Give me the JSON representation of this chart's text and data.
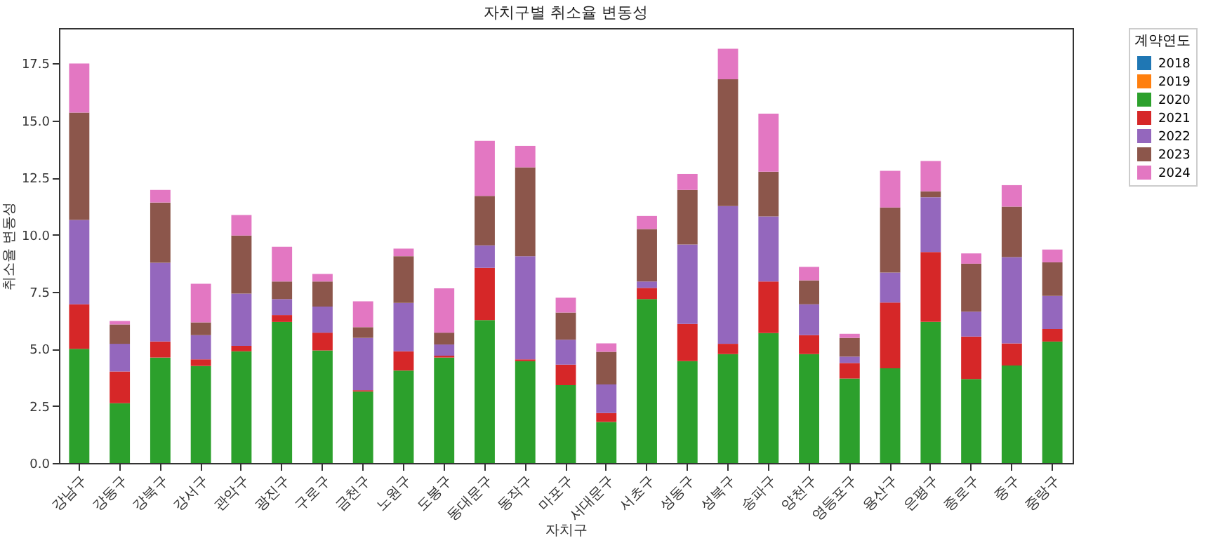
{
  "chart_data": {
    "type": "bar",
    "title": "자치구별 취소율 변동성",
    "xlabel": "자치구",
    "ylabel": "취소율 변동성",
    "legend_title": "계약연도",
    "stacked": true,
    "legend": "top right",
    "categories": [
      "강남구",
      "강동구",
      "강북구",
      "강서구",
      "관악구",
      "광진구",
      "구로구",
      "금천구",
      "노원구",
      "도봉구",
      "동대문구",
      "동작구",
      "마포구",
      "서대문구",
      "서초구",
      "성동구",
      "성북구",
      "송파구",
      "양천구",
      "영등포구",
      "용산구",
      "은평구",
      "종로구",
      "중구",
      "중랑구"
    ],
    "ylim": [
      0,
      19.05
    ],
    "yticks": [
      {
        "value": 0,
        "label": "0.0"
      },
      {
        "value": 2.5,
        "label": "2.5"
      },
      {
        "value": 5,
        "label": "5.0"
      },
      {
        "value": 7.5,
        "label": "7.5"
      },
      {
        "value": 10,
        "label": "10.0"
      },
      {
        "value": 12.5,
        "label": "12.5"
      },
      {
        "value": 15,
        "label": "15.0"
      },
      {
        "value": 17.5,
        "label": "17.5"
      }
    ],
    "series": [
      {
        "name": "2018",
        "color": "#1f77b4",
        "values": [
          0,
          0,
          0,
          0,
          0,
          0,
          0,
          0,
          0,
          0,
          0,
          0,
          0,
          0,
          0,
          0,
          0,
          0,
          0,
          0,
          0,
          0,
          0,
          0,
          0
        ]
      },
      {
        "name": "2019",
        "color": "#ff7f0e",
        "values": [
          0,
          0,
          0,
          0,
          0,
          0,
          0,
          0,
          0,
          0,
          0,
          0,
          0,
          0,
          0,
          0,
          0,
          0,
          0,
          0,
          0,
          0,
          0,
          0,
          0
        ]
      },
      {
        "name": "2020",
        "color": "#2ca02c",
        "values": [
          5.0,
          2.62,
          4.62,
          4.25,
          4.89,
          6.18,
          4.93,
          3.13,
          4.05,
          4.62,
          6.26,
          4.46,
          3.41,
          1.8,
          7.18,
          4.46,
          4.77,
          5.69,
          4.77,
          3.7,
          4.15,
          6.18,
          3.68,
          4.27,
          5.32
        ]
      },
      {
        "name": "2021",
        "color": "#d62728",
        "values": [
          1.95,
          1.39,
          0.7,
          0.29,
          0.24,
          0.3,
          0.78,
          0.06,
          0.84,
          0.08,
          2.29,
          0.08,
          0.9,
          0.39,
          0.49,
          1.63,
          0.45,
          2.26,
          0.83,
          0.68,
          2.88,
          3.06,
          1.86,
          0.97,
          0.55
        ]
      },
      {
        "name": "2022",
        "color": "#9467bd",
        "values": [
          3.7,
          1.21,
          3.45,
          1.06,
          2.29,
          0.7,
          1.14,
          2.29,
          2.12,
          0.49,
          0.98,
          4.52,
          1.09,
          1.25,
          0.28,
          3.48,
          6.03,
          2.85,
          1.35,
          0.28,
          1.31,
          2.4,
          1.09,
          3.78,
          1.45
        ]
      },
      {
        "name": "2023",
        "color": "#8c564b",
        "values": [
          4.7,
          0.85,
          2.64,
          0.56,
          2.54,
          0.77,
          1.1,
          0.47,
          2.05,
          0.52,
          2.17,
          3.89,
          1.19,
          1.43,
          2.3,
          2.39,
          5.56,
          1.96,
          1.05,
          0.82,
          2.85,
          0.26,
          2.1,
          2.21,
          1.47
        ]
      },
      {
        "name": "2024",
        "color": "#e377c2",
        "values": [
          2.15,
          0.15,
          0.55,
          1.69,
          0.9,
          1.52,
          0.33,
          1.13,
          0.33,
          1.94,
          2.41,
          0.94,
          0.65,
          0.37,
          0.57,
          0.7,
          1.33,
          2.54,
          0.59,
          0.18,
          1.61,
          1.33,
          0.45,
          0.94,
          0.56
        ]
      }
    ]
  }
}
